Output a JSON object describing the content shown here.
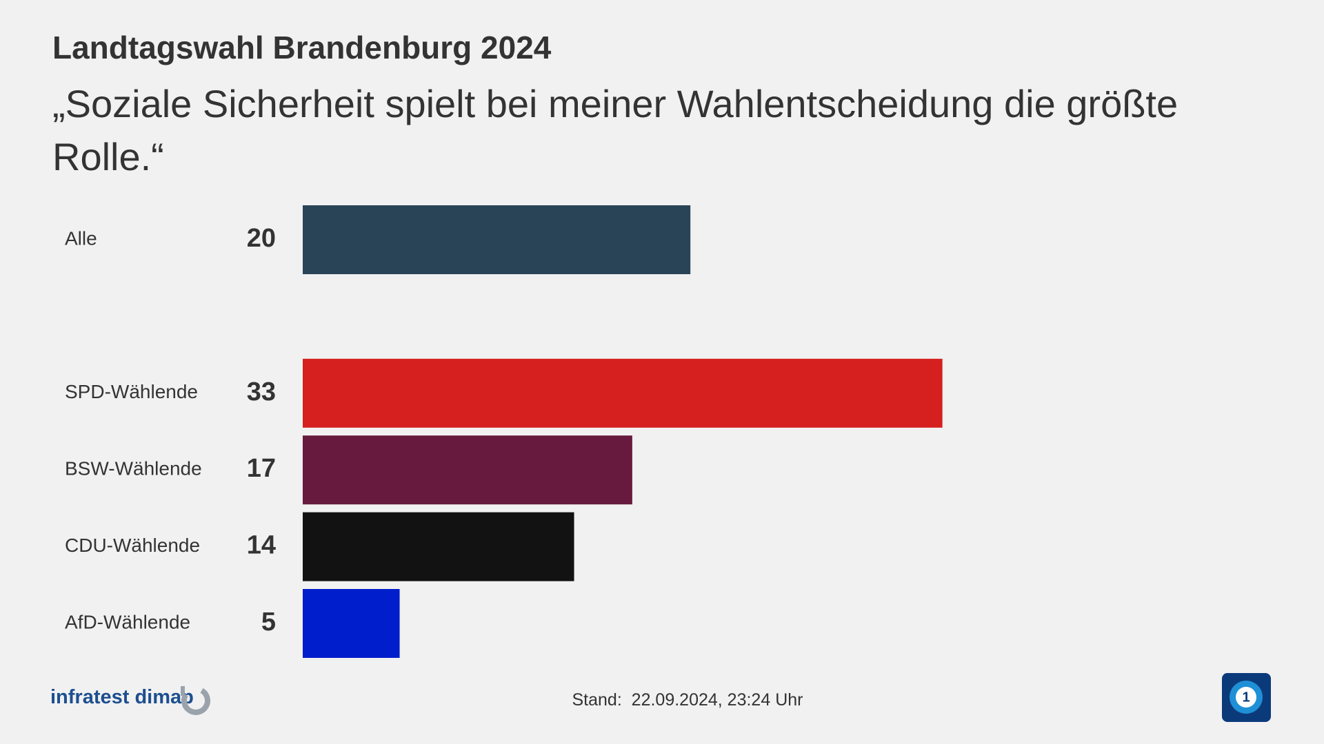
{
  "chart_data": {
    "type": "hbar",
    "title": "Landtagswahl Brandenburg 2024",
    "subtitle": "„Soziale Sicherheit spielt bei meiner Wahlentscheidung die größte Rolle.“",
    "categories": [
      "Alle",
      null,
      "SPD-Wählende",
      "BSW-Wählende",
      "CDU-Wählende",
      "AfD-Wählende"
    ],
    "values": [
      20,
      null,
      33,
      17,
      14,
      5
    ],
    "colors": [
      "#2a4457",
      null,
      "#d61f1f",
      "#681a3e",
      "#121212",
      "#001ecb"
    ],
    "source": "infratest dimap",
    "footnote": "Stand:  22.09.2024, 23:24 Uhr"
  }
}
